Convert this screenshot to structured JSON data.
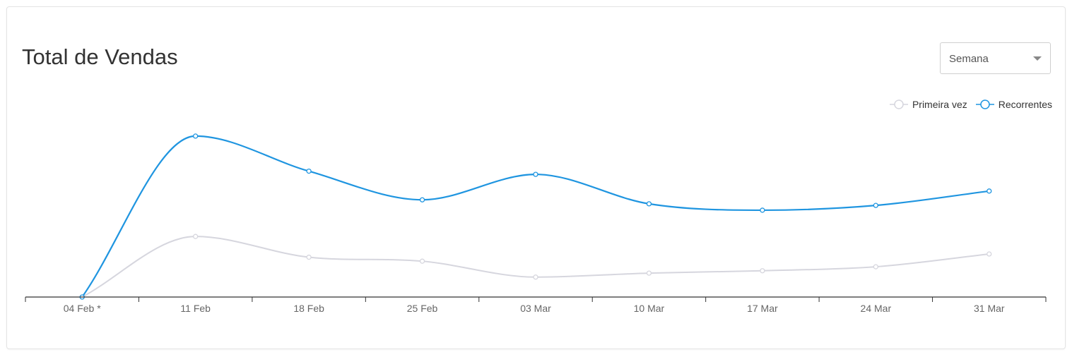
{
  "header": {
    "title": "Total de Vendas"
  },
  "period_select": {
    "value": "Semana"
  },
  "chart_data": {
    "type": "line",
    "categories": [
      "04 Feb *",
      "11 Feb",
      "18 Feb",
      "25 Feb",
      "03 Mar",
      "10 Mar",
      "17 Mar",
      "24 Mar",
      "31 Mar"
    ],
    "series": [
      {
        "name": "Primeira vez",
        "color": "#d6d6de",
        "values": [
          0,
          38,
          25,
          22.5,
          12.5,
          15,
          16.5,
          19,
          27
        ]
      },
      {
        "name": "Recorrentes",
        "color": "#1f95e0",
        "values": [
          0,
          101,
          79,
          61,
          77,
          58.5,
          54.5,
          57.5,
          66.5
        ]
      }
    ],
    "ylim": [
      0,
      120
    ],
    "grid": false,
    "legend": "top-right",
    "smooth": true
  }
}
